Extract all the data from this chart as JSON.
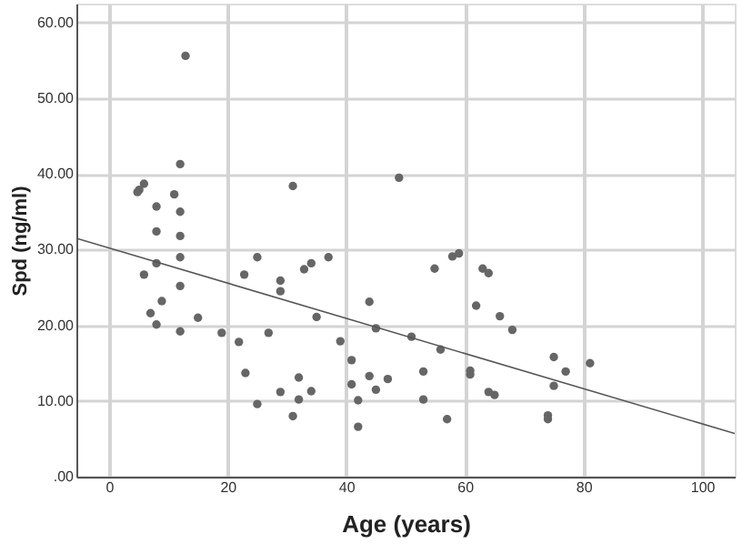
{
  "chart_data": {
    "type": "scatter",
    "xlabel": "Age (years)",
    "ylabel": "Spd (ng/ml)",
    "xlim": [
      -5.5,
      105.5
    ],
    "ylim": [
      0,
      62.5
    ],
    "xticks": [
      0,
      20,
      40,
      60,
      80,
      100
    ],
    "yticks": [
      {
        "value": 0,
        "label": ".00"
      },
      {
        "value": 10,
        "label": "10.00"
      },
      {
        "value": 20,
        "label": "20.00"
      },
      {
        "value": 30,
        "label": "30.00"
      },
      {
        "value": 40,
        "label": "40.00"
      },
      {
        "value": 50,
        "label": "50.00"
      },
      {
        "value": 60,
        "label": "60.00"
      }
    ],
    "grid": true,
    "marker": "circle",
    "series": [
      {
        "color": "#666666",
        "x": [
          12.9,
          12,
          4.8,
          5.1,
          5.9,
          11,
          31,
          8,
          12,
          8,
          12,
          12,
          8,
          25,
          22.8,
          5.9,
          28.9,
          28.9,
          12,
          8.9,
          7,
          8,
          15,
          12,
          19,
          21.9,
          26.9,
          23,
          32,
          28.9,
          32,
          25,
          31,
          48.9,
          32.9,
          34.1,
          37,
          35,
          43.9,
          45,
          39,
          40.9,
          34.1,
          40.9,
          42,
          42,
          43.9,
          45,
          47,
          51,
          53,
          53,
          55.9,
          57,
          54.9,
          57.9,
          59,
          61.9,
          60.9,
          60.9,
          63,
          64,
          65.9,
          68,
          64,
          65,
          75,
          77,
          81.1,
          75,
          74,
          74
        ],
        "values": [
          55.6,
          41.3,
          37.6,
          37.9,
          38.7,
          37.3,
          38.4,
          35.7,
          35.0,
          32.4,
          31.8,
          29.0,
          28.2,
          29.0,
          26.7,
          26.7,
          25.9,
          24.5,
          25.2,
          23.2,
          21.6,
          20.1,
          21.0,
          19.2,
          19.0,
          17.8,
          19.0,
          13.7,
          13.1,
          11.2,
          10.2,
          9.6,
          8.0,
          39.5,
          27.4,
          28.2,
          29.0,
          21.1,
          23.1,
          19.6,
          17.9,
          15.4,
          11.3,
          12.2,
          10.1,
          6.6,
          13.3,
          11.5,
          12.9,
          18.5,
          13.9,
          10.2,
          16.8,
          7.6,
          27.5,
          29.1,
          29.5,
          22.6,
          14.0,
          13.5,
          27.5,
          26.9,
          21.2,
          19.4,
          11.2,
          10.8,
          15.8,
          13.9,
          15.0,
          12.0,
          8.1,
          7.6
        ]
      },
      {
        "type": "line",
        "color": "#555555",
        "x": [
          -5.5,
          105.5
        ],
        "values": [
          31.5,
          5.7
        ],
        "marker": "none",
        "line_style": "solid"
      }
    ]
  }
}
